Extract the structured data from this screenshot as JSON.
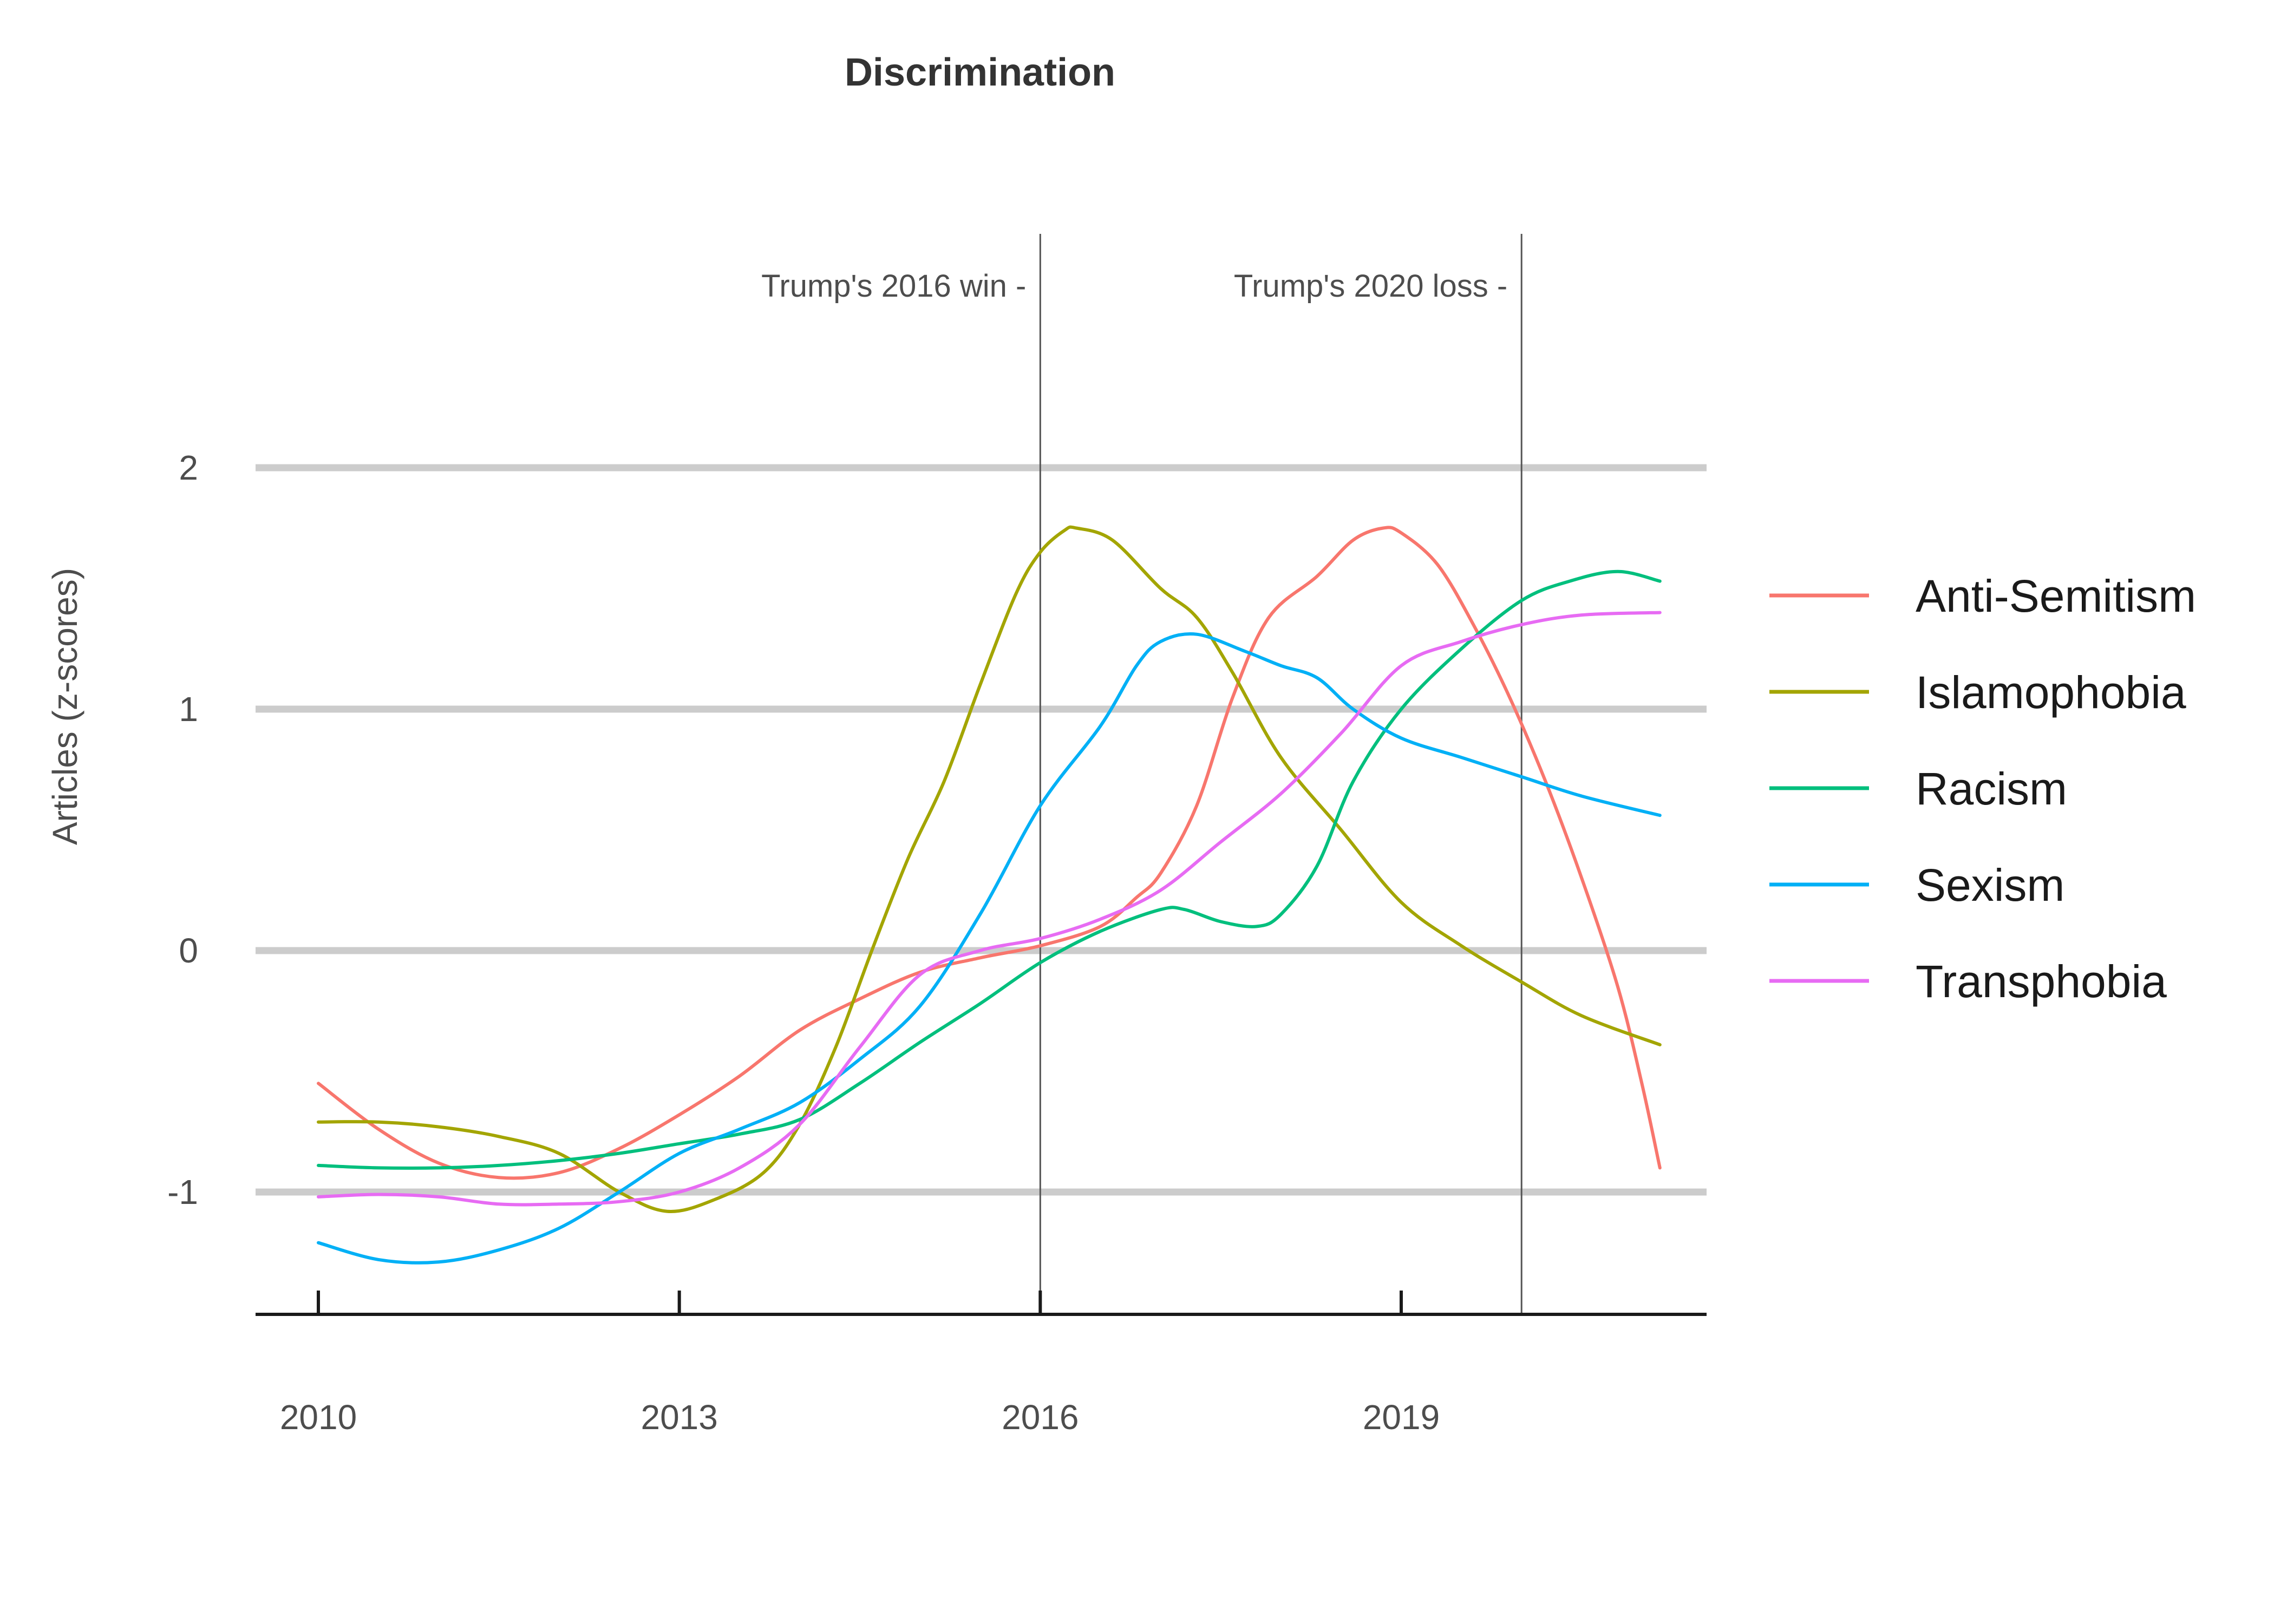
{
  "chart_data": {
    "type": "line",
    "title": "Discrimination",
    "xlabel": "",
    "ylabel": "Articles (z-scores)",
    "x_ticks": [
      "2010",
      "2013",
      "2016",
      "2019"
    ],
    "y_ticks": [
      "-1",
      "0",
      "1",
      "2"
    ],
    "xlim": [
      2009.5,
      2021.5
    ],
    "ylim": [
      -1.5,
      2.5
    ],
    "grid": "horizontal",
    "legend_position": "right",
    "annotations": [
      {
        "x": 2016.0,
        "text": "Trump's 2016 win -"
      },
      {
        "x": 2020.0,
        "text": "Trump's 2020 loss -"
      }
    ],
    "series": [
      {
        "name": "Anti-Semitism",
        "color": "#F8766D",
        "points": [
          [
            2010.0,
            -0.55
          ],
          [
            2010.5,
            -0.74
          ],
          [
            2011.0,
            -0.88
          ],
          [
            2011.5,
            -0.94
          ],
          [
            2012.0,
            -0.92
          ],
          [
            2012.5,
            -0.82
          ],
          [
            2013.0,
            -0.68
          ],
          [
            2013.5,
            -0.52
          ],
          [
            2014.0,
            -0.33
          ],
          [
            2014.5,
            -0.2
          ],
          [
            2015.0,
            -0.09
          ],
          [
            2015.5,
            -0.03
          ],
          [
            2016.0,
            0.02
          ],
          [
            2016.5,
            0.1
          ],
          [
            2016.8,
            0.22
          ],
          [
            2017.0,
            0.32
          ],
          [
            2017.3,
            0.6
          ],
          [
            2017.6,
            1.05
          ],
          [
            2017.9,
            1.38
          ],
          [
            2018.3,
            1.55
          ],
          [
            2018.6,
            1.7
          ],
          [
            2018.85,
            1.75
          ],
          [
            2019.0,
            1.73
          ],
          [
            2019.3,
            1.6
          ],
          [
            2019.6,
            1.35
          ],
          [
            2019.9,
            1.05
          ],
          [
            2020.2,
            0.7
          ],
          [
            2020.5,
            0.3
          ],
          [
            2020.8,
            -0.15
          ],
          [
            2021.0,
            -0.55
          ],
          [
            2021.15,
            -0.9
          ]
        ]
      },
      {
        "name": "Islamophobia",
        "color": "#A3A500",
        "points": [
          [
            2010.0,
            -0.71
          ],
          [
            2010.5,
            -0.71
          ],
          [
            2011.0,
            -0.73
          ],
          [
            2011.5,
            -0.77
          ],
          [
            2012.0,
            -0.84
          ],
          [
            2012.5,
            -1.0
          ],
          [
            2012.9,
            -1.08
          ],
          [
            2013.3,
            -1.03
          ],
          [
            2013.7,
            -0.92
          ],
          [
            2014.0,
            -0.72
          ],
          [
            2014.3,
            -0.4
          ],
          [
            2014.6,
            0.0
          ],
          [
            2014.9,
            0.38
          ],
          [
            2015.2,
            0.7
          ],
          [
            2015.5,
            1.1
          ],
          [
            2015.8,
            1.48
          ],
          [
            2016.0,
            1.65
          ],
          [
            2016.2,
            1.74
          ],
          [
            2016.3,
            1.75
          ],
          [
            2016.6,
            1.7
          ],
          [
            2017.0,
            1.5
          ],
          [
            2017.3,
            1.38
          ],
          [
            2017.6,
            1.15
          ],
          [
            2018.0,
            0.8
          ],
          [
            2018.5,
            0.5
          ],
          [
            2019.0,
            0.2
          ],
          [
            2019.5,
            0.02
          ],
          [
            2020.0,
            -0.13
          ],
          [
            2020.5,
            -0.27
          ],
          [
            2021.15,
            -0.39
          ]
        ]
      },
      {
        "name": "Racism",
        "color": "#00BF7D",
        "points": [
          [
            2010.0,
            -0.89
          ],
          [
            2010.5,
            -0.9
          ],
          [
            2011.0,
            -0.9
          ],
          [
            2011.5,
            -0.89
          ],
          [
            2012.0,
            -0.87
          ],
          [
            2012.5,
            -0.84
          ],
          [
            2013.0,
            -0.8
          ],
          [
            2013.5,
            -0.76
          ],
          [
            2014.0,
            -0.7
          ],
          [
            2014.5,
            -0.55
          ],
          [
            2015.0,
            -0.38
          ],
          [
            2015.5,
            -0.22
          ],
          [
            2016.0,
            -0.05
          ],
          [
            2016.5,
            0.08
          ],
          [
            2017.0,
            0.17
          ],
          [
            2017.2,
            0.17
          ],
          [
            2017.5,
            0.12
          ],
          [
            2017.8,
            0.1
          ],
          [
            2018.0,
            0.15
          ],
          [
            2018.3,
            0.35
          ],
          [
            2018.6,
            0.7
          ],
          [
            2019.0,
            1.0
          ],
          [
            2019.5,
            1.25
          ],
          [
            2020.0,
            1.45
          ],
          [
            2020.4,
            1.53
          ],
          [
            2020.8,
            1.57
          ],
          [
            2021.15,
            1.53
          ]
        ]
      },
      {
        "name": "Sexism",
        "color": "#00B0F6",
        "points": [
          [
            2010.0,
            -1.21
          ],
          [
            2010.5,
            -1.28
          ],
          [
            2011.0,
            -1.29
          ],
          [
            2011.5,
            -1.24
          ],
          [
            2012.0,
            -1.15
          ],
          [
            2012.5,
            -1.0
          ],
          [
            2013.0,
            -0.84
          ],
          [
            2013.5,
            -0.74
          ],
          [
            2014.0,
            -0.63
          ],
          [
            2014.5,
            -0.45
          ],
          [
            2015.0,
            -0.23
          ],
          [
            2015.5,
            0.15
          ],
          [
            2016.0,
            0.6
          ],
          [
            2016.5,
            0.93
          ],
          [
            2016.8,
            1.18
          ],
          [
            2017.0,
            1.28
          ],
          [
            2017.3,
            1.31
          ],
          [
            2017.7,
            1.24
          ],
          [
            2018.0,
            1.18
          ],
          [
            2018.3,
            1.13
          ],
          [
            2018.6,
            1.0
          ],
          [
            2019.0,
            0.88
          ],
          [
            2019.5,
            0.8
          ],
          [
            2020.0,
            0.72
          ],
          [
            2020.5,
            0.64
          ],
          [
            2021.15,
            0.56
          ]
        ]
      },
      {
        "name": "Transphobia",
        "color": "#E76BF3",
        "points": [
          [
            2010.0,
            -1.02
          ],
          [
            2010.5,
            -1.01
          ],
          [
            2011.0,
            -1.02
          ],
          [
            2011.5,
            -1.05
          ],
          [
            2012.0,
            -1.05
          ],
          [
            2012.5,
            -1.04
          ],
          [
            2013.0,
            -1.0
          ],
          [
            2013.5,
            -0.9
          ],
          [
            2014.0,
            -0.72
          ],
          [
            2014.5,
            -0.4
          ],
          [
            2015.0,
            -0.1
          ],
          [
            2015.5,
            0.0
          ],
          [
            2016.0,
            0.05
          ],
          [
            2016.5,
            0.13
          ],
          [
            2017.0,
            0.25
          ],
          [
            2017.5,
            0.45
          ],
          [
            2018.0,
            0.65
          ],
          [
            2018.5,
            0.9
          ],
          [
            2019.0,
            1.18
          ],
          [
            2019.5,
            1.28
          ],
          [
            2020.0,
            1.35
          ],
          [
            2020.5,
            1.39
          ],
          [
            2021.15,
            1.4
          ]
        ]
      }
    ]
  }
}
